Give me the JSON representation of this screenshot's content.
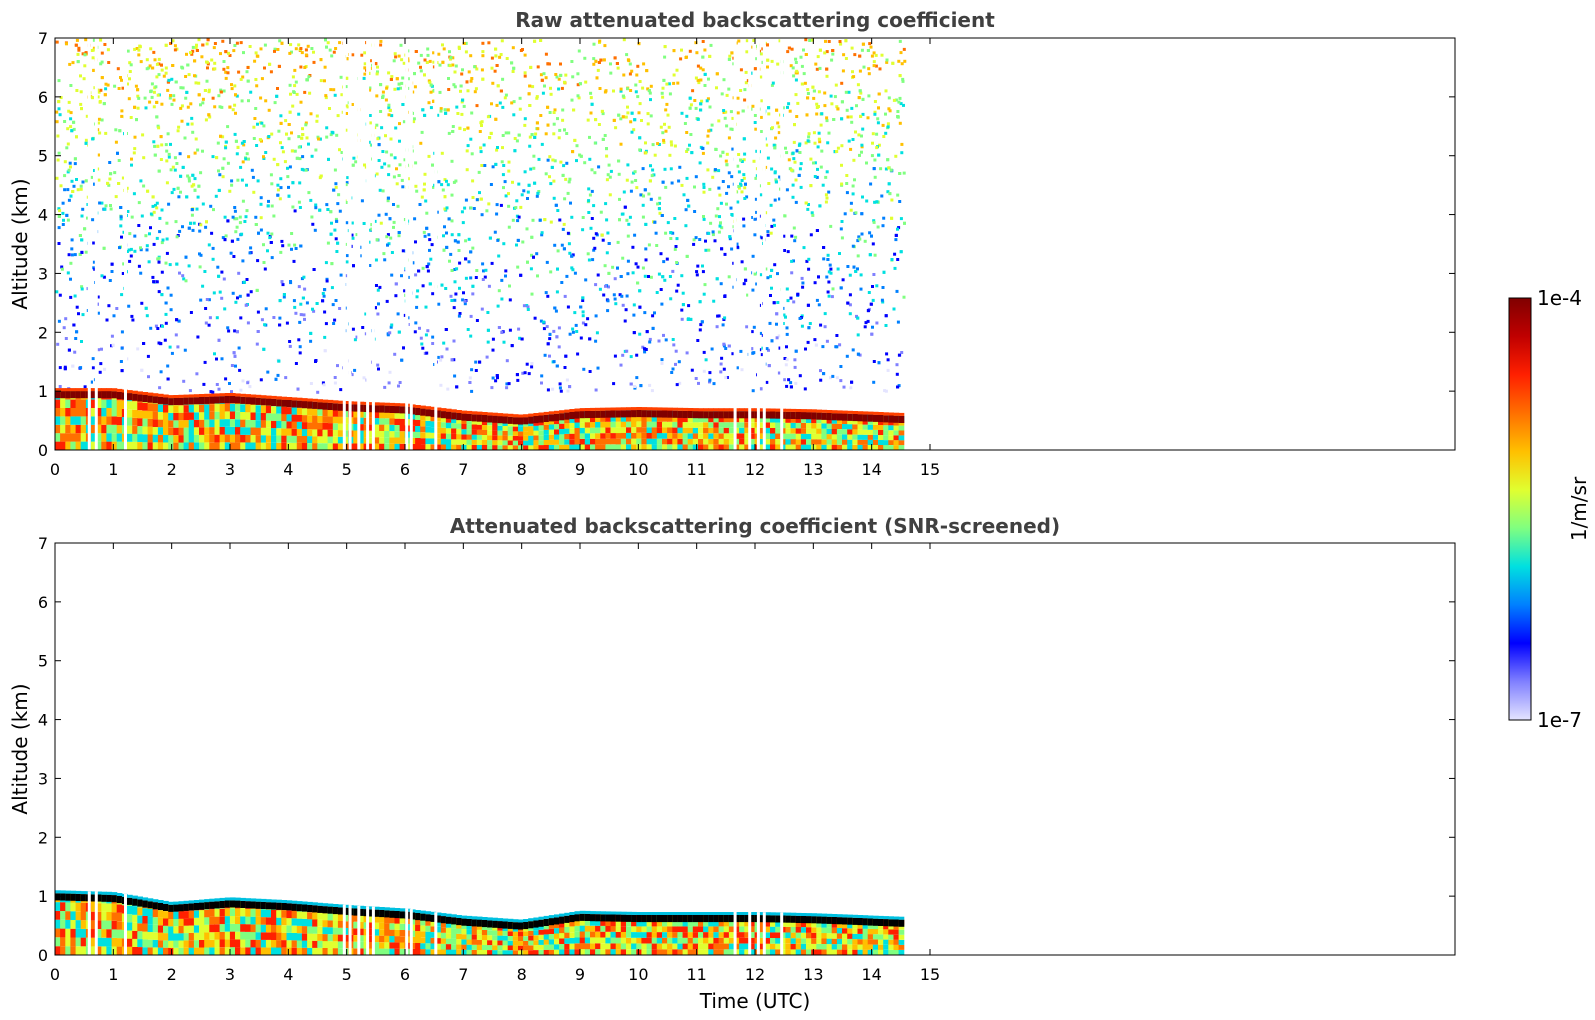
{
  "chart_data": [
    {
      "type": "heatmap",
      "title": "Raw attenuated backscattering coefficient",
      "xlabel": "",
      "ylabel": "Altitude (km)",
      "xlim": [
        0,
        24
      ],
      "ylim": [
        0,
        7
      ],
      "x_ticks": [
        0,
        1,
        2,
        3,
        4,
        5,
        6,
        7,
        8,
        9,
        10,
        11,
        12,
        13,
        14,
        15
      ],
      "y_ticks": [
        0,
        1,
        2,
        3,
        4,
        5,
        6,
        7
      ],
      "data_extent_x": [
        0,
        14.55
      ],
      "boundary_layer_top_km": [
        {
          "x": 0,
          "y": 1.0
        },
        {
          "x": 1,
          "y": 1.0
        },
        {
          "x": 2,
          "y": 0.88
        },
        {
          "x": 3,
          "y": 0.92
        },
        {
          "x": 4,
          "y": 0.85
        },
        {
          "x": 5,
          "y": 0.78
        },
        {
          "x": 6,
          "y": 0.74
        },
        {
          "x": 7,
          "y": 0.62
        },
        {
          "x": 8,
          "y": 0.55
        },
        {
          "x": 9,
          "y": 0.66
        },
        {
          "x": 10,
          "y": 0.68
        },
        {
          "x": 11,
          "y": 0.66
        },
        {
          "x": 12,
          "y": 0.66
        },
        {
          "x": 13,
          "y": 0.64
        },
        {
          "x": 14.5,
          "y": 0.58
        }
      ],
      "noise_region_km": [
        1,
        7
      ],
      "data_gaps_utc": [
        0.58,
        0.7,
        1.2,
        4.95,
        5.05,
        5.2,
        5.35,
        5.45,
        6.02,
        6.1,
        6.52,
        11.65,
        11.9,
        12.05,
        12.15,
        12.45
      ]
    },
    {
      "type": "heatmap",
      "title": "Attenuated backscattering coefficient (SNR-screened)",
      "xlabel": "Time (UTC)",
      "ylabel": "Altitude (km)",
      "xlim": [
        0,
        24
      ],
      "ylim": [
        0,
        7
      ],
      "x_ticks": [
        0,
        1,
        2,
        3,
        4,
        5,
        6,
        7,
        8,
        9,
        10,
        11,
        12,
        13,
        14,
        15
      ],
      "y_ticks": [
        0,
        1,
        2,
        3,
        4,
        5,
        6,
        7
      ],
      "data_extent_x": [
        0,
        14.55
      ],
      "boundary_layer_top_km": [
        {
          "x": 0,
          "y": 1.05
        },
        {
          "x": 1,
          "y": 1.02
        },
        {
          "x": 2,
          "y": 0.85
        },
        {
          "x": 3,
          "y": 0.93
        },
        {
          "x": 4,
          "y": 0.88
        },
        {
          "x": 5,
          "y": 0.8
        },
        {
          "x": 6,
          "y": 0.74
        },
        {
          "x": 7,
          "y": 0.62
        },
        {
          "x": 8,
          "y": 0.55
        },
        {
          "x": 9,
          "y": 0.7
        },
        {
          "x": 10,
          "y": 0.68
        },
        {
          "x": 11,
          "y": 0.68
        },
        {
          "x": 12,
          "y": 0.68
        },
        {
          "x": 13,
          "y": 0.66
        },
        {
          "x": 14.5,
          "y": 0.6
        }
      ]
    }
  ],
  "colorbar": {
    "top_label": "1e-4",
    "bottom_label": "1e-7",
    "unit": "1/m/sr",
    "scale": "log",
    "range": [
      1e-07,
      0.0001
    ],
    "colormap": [
      "#e4e4ff",
      "#8080ff",
      "#0000ff",
      "#0080ff",
      "#00e0e0",
      "#80ff80",
      "#e0ff30",
      "#ffc000",
      "#ff7000",
      "#ff2000",
      "#c00000",
      "#800000"
    ]
  }
}
